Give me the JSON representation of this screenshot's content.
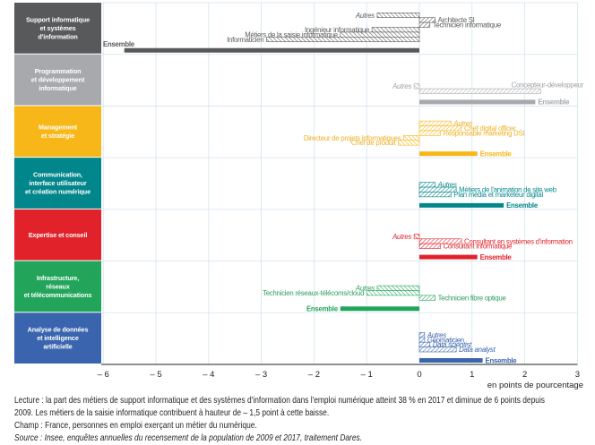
{
  "chart_data": {
    "type": "bar",
    "orientation": "horizontal",
    "title": "",
    "xlabel": "en points de pourcentage",
    "ylabel": "",
    "xlim": [
      -6,
      3
    ],
    "xticks": [
      -6,
      -5,
      -4,
      -3,
      -2,
      -1,
      0,
      1,
      2,
      3
    ],
    "xtick_labels": [
      "– 6",
      "– 5",
      "– 4",
      "– 3",
      "– 2",
      "– 1",
      "0",
      "1",
      "2",
      "3"
    ],
    "grid": true,
    "legend": "none",
    "groups": [
      {
        "label_lines": [
          "Support informatique",
          "et systèmes",
          "d'information"
        ],
        "color": "#58595b",
        "text_color": "#5a5b5d",
        "bars": [
          {
            "label": "Autres",
            "value": -0.8
          },
          {
            "label": "Architecte SI",
            "value": 0.3
          },
          {
            "label": "Technicien informatique",
            "value": 0.2
          },
          {
            "label": "Ingénieur informatique",
            "value": -0.9
          },
          {
            "label": "Métiers de la saisie informatique",
            "value": -1.5
          },
          {
            "label": "Informaticien",
            "value": -2.9
          }
        ],
        "ensemble": {
          "label": "Ensemble",
          "value": -5.6
        }
      },
      {
        "label_lines": [
          "Programmation",
          "et développement",
          "informatique"
        ],
        "color": "#a7a9ac",
        "text_color": "#a0a2a5",
        "bars": [
          {
            "label": "Autres",
            "value": -0.1
          },
          {
            "label": "Concepteur-développeur",
            "value": 2.3
          }
        ],
        "ensemble": {
          "label": "Ensemble",
          "value": 2.2
        }
      },
      {
        "label_lines": [
          "Management",
          "et stratégie"
        ],
        "color": "#f8b719",
        "text_color": "#efb024",
        "bars": [
          {
            "label": "Autres",
            "value": 0.6
          },
          {
            "label": "Chef digital officer",
            "value": 0.8
          },
          {
            "label": "Responsable marketing DSI",
            "value": 0.4
          },
          {
            "label": "Directeur de projets informatiques",
            "value": -0.3
          },
          {
            "label": "Chef de produit",
            "value": -0.4
          }
        ],
        "ensemble": {
          "label": "Ensemble",
          "value": 1.1
        }
      },
      {
        "label_lines": [
          "Communication,",
          "interface utilisateur",
          "et création numérique"
        ],
        "color": "#00868b",
        "text_color": "#0b8a8f",
        "bars": [
          {
            "label": "Autres",
            "value": 0.3
          },
          {
            "label": "Métiers de l'animation de site web",
            "value": 0.7
          },
          {
            "label": "Plan média et marketeur digital",
            "value": 0.6
          }
        ],
        "ensemble": {
          "label": "Ensemble",
          "value": 1.6
        }
      },
      {
        "label_lines": [
          "Expertise et conseil"
        ],
        "color": "#e2222a",
        "text_color": "#e0262d",
        "bars": [
          {
            "label": "Autres",
            "value": -0.1
          },
          {
            "label": "Consultant en systèmes d'information",
            "value": 0.8
          },
          {
            "label": "Consultant informatique",
            "value": 0.4
          }
        ],
        "ensemble": {
          "label": "Ensemble",
          "value": 1.1
        }
      },
      {
        "label_lines": [
          "Infrastructure,",
          "réseaux",
          "et télécommunications"
        ],
        "color": "#22a55b",
        "text_color": "#2e9f62",
        "bars": [
          {
            "label": "Autres",
            "value": -0.8
          },
          {
            "label": "Technicien réseaux-télécoms/cloud",
            "value": -1.0
          },
          {
            "label": "Technicien fibre optique",
            "value": 0.3
          }
        ],
        "ensemble": {
          "label": "Ensemble",
          "value": -1.5
        }
      },
      {
        "label_lines": [
          "Analyse de données",
          "et intelligence",
          "artificielle"
        ],
        "color": "#3a65ae",
        "text_color": "#3762aa",
        "bars": [
          {
            "label": "Autres",
            "value": 0.1
          },
          {
            "label": "Géomaticien",
            "value": 0.1
          },
          {
            "label": "Data scientist",
            "value": 0.2
          },
          {
            "label": "Data analyst",
            "value": 0.7
          }
        ],
        "ensemble": {
          "label": "Ensemble",
          "value": 1.2
        }
      }
    ]
  },
  "notes": {
    "lecture": [
      "Lecture : la part des métiers de  support informatique et des systèmes d'information dans l'emploi numérique atteint 38 % en 2017 et diminue de 6 points depuis",
      "2009. Les métiers de la saisie informatique contribuent à hauteur de – 1,5 point à cette baisse."
    ],
    "champ": "Champ : France, personnes en emploi exerçant un métier du numérique.",
    "source": "Source : Insee, enquêtes annuelles du recensement de la population de 2009 et 2017, traitement Dares."
  }
}
